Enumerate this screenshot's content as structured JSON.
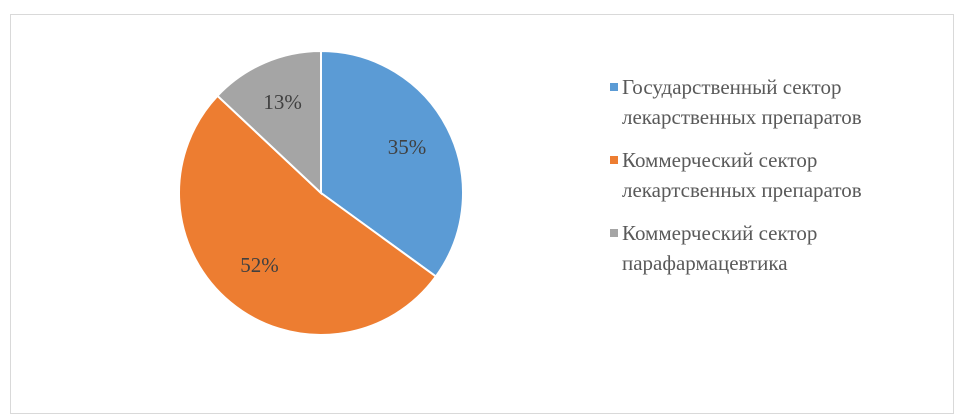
{
  "chart_data": {
    "type": "pie",
    "categories": [
      "Государственный сектор лекарственных препаратов",
      "Коммерческий сектор лекартсвенных препаратов",
      "Коммерческий сектор парафармацевтика"
    ],
    "values": [
      35,
      52,
      13
    ],
    "value_labels": [
      "35%",
      "52%",
      "13%"
    ],
    "colors": [
      "#5b9bd5",
      "#ed7d31",
      "#a5a5a5"
    ],
    "legend": "right"
  }
}
